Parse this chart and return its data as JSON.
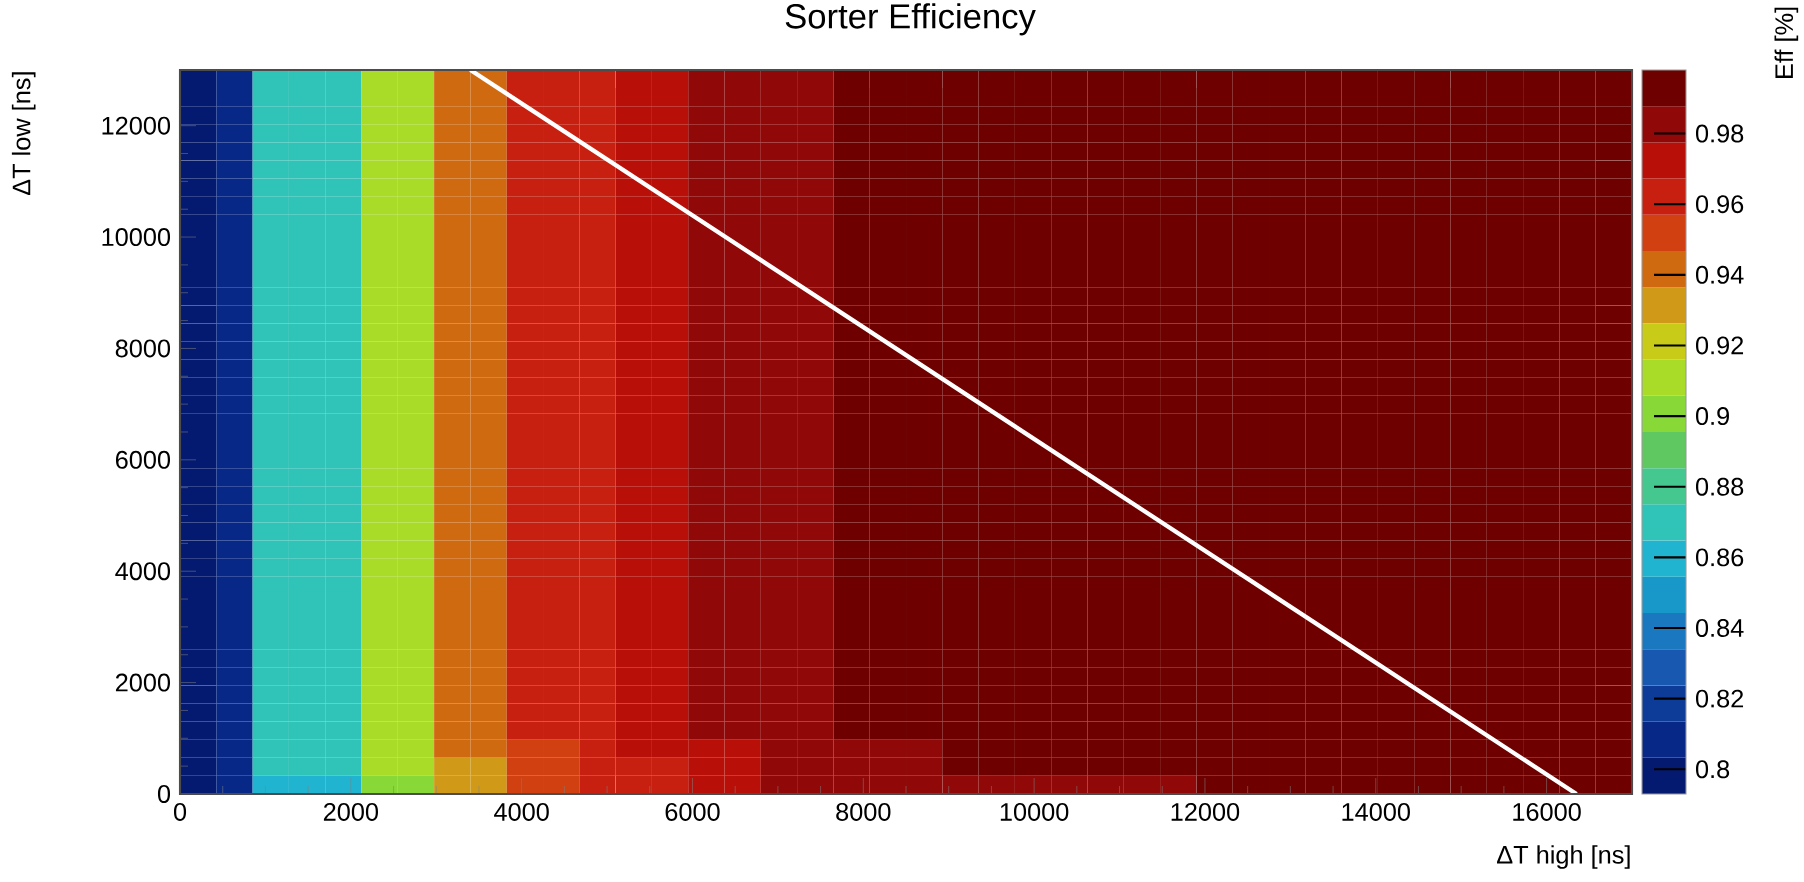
{
  "chart_data": {
    "type": "heatmap",
    "title": "Sorter Efficiency",
    "xlabel": "ΔT high [ns]",
    "ylabel": "ΔT low [ns]",
    "clabel": "Eff [%]",
    "x": [
      212.5,
      637.5,
      1062.5,
      1487.5,
      1912.5,
      2337.5,
      2762.5,
      3187.5,
      3612.5,
      4037.5,
      4462.5,
      4887.5,
      5312.5,
      5737.5,
      6162.5,
      6587.5,
      7012.5,
      7437.5,
      7862.5,
      8287.5,
      8712.5,
      9137.5,
      9562.5,
      9987.5,
      10412.5,
      10837.5,
      11262.5,
      11687.5,
      12112.5,
      12537.5,
      12962.5,
      13387.5,
      13812.5,
      14237.5,
      14662.5,
      15087.5,
      15512.5,
      15937.5,
      16362.5,
      16787.5
    ],
    "y": [
      12837.5,
      12512.5,
      12187.5,
      11862.5,
      11537.5,
      11212.5,
      10887.5,
      10562.5,
      10237.5,
      9912.5,
      9587.5,
      9262.5,
      8937.5,
      8612.5,
      8287.5,
      7962.5,
      7637.5,
      7312.5,
      6987.5,
      6662.5,
      6337.5,
      6012.5,
      5687.5,
      5362.5,
      5037.5,
      4712.5,
      4387.5,
      4062.5,
      3737.5,
      3412.5,
      3087.5,
      2762.5,
      2437.5,
      2112.5,
      1787.5,
      1462.5,
      1137.5,
      812.5,
      487.5,
      162.5
    ],
    "xlim": [
      0,
      17000
    ],
    "ylim": [
      0,
      13000
    ],
    "xticks": [
      0,
      2000,
      4000,
      6000,
      8000,
      10000,
      12000,
      14000,
      16000
    ],
    "yticks": [
      0,
      2000,
      4000,
      6000,
      8000,
      10000,
      12000
    ],
    "clim": [
      0.793,
      0.998
    ],
    "cticks": [
      0.8,
      0.82,
      0.84,
      0.86,
      0.88,
      0.9,
      0.92,
      0.94,
      0.96,
      0.98
    ],
    "cells": [
      [
        0.798,
        0.808,
        0.87,
        0.87,
        0.87,
        0.911,
        0.911,
        0.941,
        0.941,
        0.962,
        0.962,
        0.962,
        0.972,
        0.972,
        0.982,
        0.982,
        0.982,
        0.982,
        0.992,
        0.992,
        0.992,
        0.992,
        0.992,
        0.992,
        0.992,
        0.992,
        0.992,
        0.992,
        0.992,
        0.992,
        0.992,
        0.992,
        0.992,
        0.992,
        0.992,
        0.992,
        0.992,
        0.992,
        0.992,
        0.992
      ],
      [
        0.798,
        0.808,
        0.87,
        0.87,
        0.87,
        0.911,
        0.911,
        0.941,
        0.941,
        0.962,
        0.962,
        0.962,
        0.972,
        0.972,
        0.982,
        0.982,
        0.982,
        0.982,
        0.992,
        0.992,
        0.992,
        0.992,
        0.992,
        0.992,
        0.992,
        0.992,
        0.992,
        0.992,
        0.992,
        0.992,
        0.992,
        0.992,
        0.992,
        0.992,
        0.992,
        0.992,
        0.992,
        0.992,
        0.992,
        0.992
      ],
      [
        0.798,
        0.808,
        0.87,
        0.87,
        0.87,
        0.911,
        0.911,
        0.941,
        0.941,
        0.962,
        0.962,
        0.962,
        0.972,
        0.972,
        0.982,
        0.982,
        0.982,
        0.982,
        0.992,
        0.992,
        0.992,
        0.992,
        0.992,
        0.992,
        0.992,
        0.992,
        0.992,
        0.992,
        0.992,
        0.992,
        0.992,
        0.992,
        0.992,
        0.992,
        0.992,
        0.992,
        0.992,
        0.992,
        0.992,
        0.992
      ],
      [
        0.798,
        0.808,
        0.87,
        0.87,
        0.87,
        0.911,
        0.911,
        0.941,
        0.941,
        0.962,
        0.962,
        0.962,
        0.972,
        0.972,
        0.982,
        0.982,
        0.982,
        0.982,
        0.992,
        0.992,
        0.992,
        0.992,
        0.992,
        0.992,
        0.992,
        0.992,
        0.992,
        0.992,
        0.992,
        0.992,
        0.992,
        0.992,
        0.992,
        0.992,
        0.992,
        0.992,
        0.992,
        0.992,
        0.992,
        0.992
      ],
      [
        0.798,
        0.808,
        0.87,
        0.87,
        0.87,
        0.911,
        0.911,
        0.941,
        0.941,
        0.962,
        0.962,
        0.962,
        0.972,
        0.972,
        0.982,
        0.982,
        0.982,
        0.982,
        0.992,
        0.992,
        0.992,
        0.992,
        0.992,
        0.992,
        0.992,
        0.992,
        0.992,
        0.992,
        0.992,
        0.992,
        0.992,
        0.992,
        0.992,
        0.992,
        0.992,
        0.992,
        0.992,
        0.992,
        0.992,
        0.992
      ],
      [
        0.798,
        0.808,
        0.87,
        0.87,
        0.87,
        0.911,
        0.911,
        0.941,
        0.941,
        0.962,
        0.962,
        0.962,
        0.972,
        0.972,
        0.982,
        0.982,
        0.982,
        0.982,
        0.992,
        0.992,
        0.992,
        0.992,
        0.992,
        0.992,
        0.992,
        0.992,
        0.992,
        0.992,
        0.992,
        0.992,
        0.992,
        0.992,
        0.992,
        0.992,
        0.992,
        0.992,
        0.992,
        0.992,
        0.992,
        0.992
      ],
      [
        0.798,
        0.808,
        0.87,
        0.87,
        0.87,
        0.911,
        0.911,
        0.941,
        0.941,
        0.962,
        0.962,
        0.962,
        0.972,
        0.972,
        0.982,
        0.982,
        0.982,
        0.982,
        0.992,
        0.992,
        0.992,
        0.992,
        0.992,
        0.992,
        0.992,
        0.992,
        0.992,
        0.992,
        0.992,
        0.992,
        0.992,
        0.992,
        0.992,
        0.992,
        0.992,
        0.992,
        0.992,
        0.992,
        0.992,
        0.992
      ],
      [
        0.798,
        0.808,
        0.87,
        0.87,
        0.87,
        0.911,
        0.911,
        0.941,
        0.941,
        0.962,
        0.962,
        0.962,
        0.972,
        0.972,
        0.982,
        0.982,
        0.982,
        0.982,
        0.992,
        0.992,
        0.992,
        0.992,
        0.992,
        0.992,
        0.992,
        0.992,
        0.992,
        0.992,
        0.992,
        0.992,
        0.992,
        0.992,
        0.992,
        0.992,
        0.992,
        0.992,
        0.992,
        0.992,
        0.992,
        0.992
      ],
      [
        0.798,
        0.808,
        0.87,
        0.87,
        0.87,
        0.911,
        0.911,
        0.941,
        0.941,
        0.962,
        0.962,
        0.962,
        0.972,
        0.972,
        0.982,
        0.982,
        0.982,
        0.982,
        0.992,
        0.992,
        0.992,
        0.992,
        0.992,
        0.992,
        0.992,
        0.992,
        0.992,
        0.992,
        0.992,
        0.992,
        0.992,
        0.992,
        0.992,
        0.992,
        0.992,
        0.992,
        0.992,
        0.992,
        0.992,
        0.992
      ],
      [
        0.798,
        0.808,
        0.87,
        0.87,
        0.87,
        0.911,
        0.911,
        0.941,
        0.941,
        0.962,
        0.962,
        0.962,
        0.972,
        0.972,
        0.982,
        0.982,
        0.982,
        0.982,
        0.992,
        0.992,
        0.992,
        0.992,
        0.992,
        0.992,
        0.992,
        0.992,
        0.992,
        0.992,
        0.992,
        0.992,
        0.992,
        0.992,
        0.992,
        0.992,
        0.992,
        0.992,
        0.992,
        0.992,
        0.992,
        0.992
      ],
      [
        0.798,
        0.808,
        0.87,
        0.87,
        0.87,
        0.911,
        0.911,
        0.941,
        0.941,
        0.962,
        0.962,
        0.962,
        0.972,
        0.972,
        0.982,
        0.982,
        0.982,
        0.982,
        0.992,
        0.992,
        0.992,
        0.992,
        0.992,
        0.992,
        0.992,
        0.992,
        0.992,
        0.992,
        0.992,
        0.992,
        0.992,
        0.992,
        0.992,
        0.992,
        0.992,
        0.992,
        0.992,
        0.992,
        0.992,
        0.992
      ],
      [
        0.798,
        0.808,
        0.87,
        0.87,
        0.87,
        0.911,
        0.911,
        0.941,
        0.941,
        0.962,
        0.962,
        0.962,
        0.972,
        0.972,
        0.982,
        0.982,
        0.982,
        0.982,
        0.992,
        0.992,
        0.992,
        0.992,
        0.992,
        0.992,
        0.992,
        0.992,
        0.992,
        0.992,
        0.992,
        0.992,
        0.992,
        0.992,
        0.992,
        0.992,
        0.992,
        0.992,
        0.992,
        0.992,
        0.992,
        0.992
      ],
      [
        0.798,
        0.808,
        0.87,
        0.87,
        0.87,
        0.911,
        0.911,
        0.941,
        0.941,
        0.962,
        0.962,
        0.962,
        0.972,
        0.972,
        0.982,
        0.982,
        0.982,
        0.982,
        0.992,
        0.992,
        0.992,
        0.992,
        0.992,
        0.992,
        0.992,
        0.992,
        0.992,
        0.992,
        0.992,
        0.992,
        0.992,
        0.992,
        0.992,
        0.992,
        0.992,
        0.992,
        0.992,
        0.992,
        0.992,
        0.992
      ],
      [
        0.798,
        0.808,
        0.87,
        0.87,
        0.87,
        0.911,
        0.911,
        0.941,
        0.941,
        0.962,
        0.962,
        0.962,
        0.972,
        0.972,
        0.982,
        0.982,
        0.982,
        0.982,
        0.992,
        0.992,
        0.992,
        0.992,
        0.992,
        0.992,
        0.992,
        0.992,
        0.992,
        0.992,
        0.992,
        0.992,
        0.992,
        0.992,
        0.992,
        0.992,
        0.992,
        0.992,
        0.992,
        0.992,
        0.992,
        0.992
      ],
      [
        0.798,
        0.808,
        0.87,
        0.87,
        0.87,
        0.911,
        0.911,
        0.941,
        0.941,
        0.962,
        0.962,
        0.962,
        0.972,
        0.972,
        0.982,
        0.982,
        0.982,
        0.982,
        0.992,
        0.992,
        0.992,
        0.992,
        0.992,
        0.992,
        0.992,
        0.992,
        0.992,
        0.992,
        0.992,
        0.992,
        0.992,
        0.992,
        0.992,
        0.992,
        0.992,
        0.992,
        0.992,
        0.992,
        0.992,
        0.992
      ],
      [
        0.798,
        0.808,
        0.87,
        0.87,
        0.87,
        0.911,
        0.911,
        0.941,
        0.941,
        0.962,
        0.962,
        0.962,
        0.972,
        0.972,
        0.982,
        0.982,
        0.982,
        0.982,
        0.992,
        0.992,
        0.992,
        0.992,
        0.992,
        0.992,
        0.992,
        0.992,
        0.992,
        0.992,
        0.992,
        0.992,
        0.992,
        0.992,
        0.992,
        0.992,
        0.992,
        0.992,
        0.992,
        0.992,
        0.992,
        0.992
      ],
      [
        0.798,
        0.808,
        0.87,
        0.87,
        0.87,
        0.911,
        0.911,
        0.941,
        0.941,
        0.962,
        0.962,
        0.962,
        0.972,
        0.972,
        0.982,
        0.982,
        0.982,
        0.982,
        0.992,
        0.992,
        0.992,
        0.992,
        0.992,
        0.992,
        0.992,
        0.992,
        0.992,
        0.992,
        0.992,
        0.992,
        0.992,
        0.992,
        0.992,
        0.992,
        0.992,
        0.992,
        0.992,
        0.992,
        0.992,
        0.992
      ],
      [
        0.798,
        0.808,
        0.87,
        0.87,
        0.87,
        0.911,
        0.911,
        0.941,
        0.941,
        0.962,
        0.962,
        0.962,
        0.972,
        0.972,
        0.982,
        0.982,
        0.982,
        0.982,
        0.992,
        0.992,
        0.992,
        0.992,
        0.992,
        0.992,
        0.992,
        0.992,
        0.992,
        0.992,
        0.992,
        0.992,
        0.992,
        0.992,
        0.992,
        0.992,
        0.992,
        0.992,
        0.992,
        0.992,
        0.992,
        0.992
      ],
      [
        0.798,
        0.808,
        0.87,
        0.87,
        0.87,
        0.911,
        0.911,
        0.941,
        0.941,
        0.962,
        0.962,
        0.962,
        0.972,
        0.972,
        0.982,
        0.982,
        0.982,
        0.982,
        0.992,
        0.992,
        0.992,
        0.992,
        0.992,
        0.992,
        0.992,
        0.992,
        0.992,
        0.992,
        0.992,
        0.992,
        0.992,
        0.992,
        0.992,
        0.992,
        0.992,
        0.992,
        0.992,
        0.992,
        0.992,
        0.992
      ],
      [
        0.798,
        0.808,
        0.87,
        0.87,
        0.87,
        0.911,
        0.911,
        0.941,
        0.941,
        0.962,
        0.962,
        0.962,
        0.972,
        0.972,
        0.982,
        0.982,
        0.982,
        0.982,
        0.992,
        0.992,
        0.992,
        0.992,
        0.992,
        0.992,
        0.992,
        0.992,
        0.992,
        0.992,
        0.992,
        0.992,
        0.992,
        0.992,
        0.992,
        0.992,
        0.992,
        0.992,
        0.992,
        0.992,
        0.992,
        0.992
      ],
      [
        0.798,
        0.808,
        0.87,
        0.87,
        0.87,
        0.911,
        0.911,
        0.941,
        0.941,
        0.962,
        0.962,
        0.962,
        0.972,
        0.972,
        0.982,
        0.982,
        0.982,
        0.982,
        0.992,
        0.992,
        0.992,
        0.992,
        0.992,
        0.992,
        0.992,
        0.992,
        0.992,
        0.992,
        0.992,
        0.992,
        0.992,
        0.992,
        0.992,
        0.992,
        0.992,
        0.992,
        0.992,
        0.992,
        0.992,
        0.992
      ],
      [
        0.798,
        0.808,
        0.87,
        0.87,
        0.87,
        0.911,
        0.911,
        0.941,
        0.941,
        0.962,
        0.962,
        0.962,
        0.972,
        0.972,
        0.982,
        0.982,
        0.982,
        0.982,
        0.992,
        0.992,
        0.992,
        0.992,
        0.992,
        0.992,
        0.992,
        0.992,
        0.992,
        0.992,
        0.992,
        0.992,
        0.992,
        0.992,
        0.992,
        0.992,
        0.992,
        0.992,
        0.992,
        0.992,
        0.992,
        0.992
      ],
      [
        0.798,
        0.808,
        0.87,
        0.87,
        0.87,
        0.911,
        0.911,
        0.941,
        0.941,
        0.962,
        0.962,
        0.962,
        0.972,
        0.972,
        0.982,
        0.982,
        0.982,
        0.982,
        0.992,
        0.992,
        0.992,
        0.992,
        0.992,
        0.992,
        0.992,
        0.992,
        0.992,
        0.992,
        0.992,
        0.992,
        0.992,
        0.992,
        0.992,
        0.992,
        0.992,
        0.992,
        0.992,
        0.992,
        0.992,
        0.992
      ],
      [
        0.798,
        0.808,
        0.87,
        0.87,
        0.87,
        0.911,
        0.911,
        0.941,
        0.941,
        0.962,
        0.962,
        0.962,
        0.972,
        0.972,
        0.982,
        0.982,
        0.982,
        0.982,
        0.992,
        0.992,
        0.992,
        0.992,
        0.992,
        0.992,
        0.992,
        0.992,
        0.992,
        0.992,
        0.992,
        0.992,
        0.992,
        0.992,
        0.992,
        0.992,
        0.992,
        0.992,
        0.992,
        0.992,
        0.992,
        0.992
      ],
      [
        0.798,
        0.808,
        0.87,
        0.87,
        0.87,
        0.911,
        0.911,
        0.941,
        0.941,
        0.962,
        0.962,
        0.962,
        0.972,
        0.972,
        0.982,
        0.982,
        0.982,
        0.982,
        0.992,
        0.992,
        0.992,
        0.992,
        0.992,
        0.992,
        0.992,
        0.992,
        0.992,
        0.992,
        0.992,
        0.992,
        0.992,
        0.992,
        0.992,
        0.992,
        0.992,
        0.992,
        0.992,
        0.992,
        0.992,
        0.992
      ],
      [
        0.798,
        0.808,
        0.87,
        0.87,
        0.87,
        0.911,
        0.911,
        0.941,
        0.941,
        0.962,
        0.962,
        0.962,
        0.972,
        0.972,
        0.982,
        0.982,
        0.982,
        0.982,
        0.992,
        0.992,
        0.992,
        0.992,
        0.992,
        0.992,
        0.992,
        0.992,
        0.992,
        0.992,
        0.992,
        0.992,
        0.992,
        0.992,
        0.992,
        0.992,
        0.992,
        0.992,
        0.992,
        0.992,
        0.992,
        0.992
      ],
      [
        0.798,
        0.808,
        0.87,
        0.87,
        0.87,
        0.911,
        0.911,
        0.941,
        0.941,
        0.962,
        0.962,
        0.962,
        0.972,
        0.972,
        0.982,
        0.982,
        0.982,
        0.982,
        0.992,
        0.992,
        0.992,
        0.992,
        0.992,
        0.992,
        0.992,
        0.992,
        0.992,
        0.992,
        0.992,
        0.992,
        0.992,
        0.992,
        0.992,
        0.992,
        0.992,
        0.992,
        0.992,
        0.992,
        0.992,
        0.992
      ],
      [
        0.798,
        0.808,
        0.87,
        0.87,
        0.87,
        0.911,
        0.911,
        0.941,
        0.941,
        0.962,
        0.962,
        0.962,
        0.972,
        0.972,
        0.982,
        0.982,
        0.982,
        0.982,
        0.992,
        0.992,
        0.992,
        0.992,
        0.992,
        0.992,
        0.992,
        0.992,
        0.992,
        0.992,
        0.992,
        0.992,
        0.992,
        0.992,
        0.992,
        0.992,
        0.992,
        0.992,
        0.992,
        0.992,
        0.992,
        0.992
      ],
      [
        0.798,
        0.808,
        0.87,
        0.87,
        0.87,
        0.911,
        0.911,
        0.941,
        0.941,
        0.962,
        0.962,
        0.962,
        0.972,
        0.972,
        0.982,
        0.982,
        0.982,
        0.982,
        0.992,
        0.992,
        0.992,
        0.992,
        0.992,
        0.992,
        0.992,
        0.992,
        0.992,
        0.992,
        0.992,
        0.992,
        0.992,
        0.992,
        0.992,
        0.992,
        0.992,
        0.992,
        0.992,
        0.992,
        0.992,
        0.992
      ],
      [
        0.798,
        0.808,
        0.87,
        0.87,
        0.87,
        0.911,
        0.911,
        0.941,
        0.941,
        0.962,
        0.962,
        0.962,
        0.972,
        0.972,
        0.982,
        0.982,
        0.982,
        0.982,
        0.992,
        0.992,
        0.992,
        0.992,
        0.992,
        0.992,
        0.992,
        0.992,
        0.992,
        0.992,
        0.992,
        0.992,
        0.992,
        0.992,
        0.992,
        0.992,
        0.992,
        0.992,
        0.992,
        0.992,
        0.992,
        0.992
      ],
      [
        0.798,
        0.808,
        0.87,
        0.87,
        0.87,
        0.911,
        0.911,
        0.941,
        0.941,
        0.962,
        0.962,
        0.962,
        0.972,
        0.972,
        0.982,
        0.982,
        0.982,
        0.982,
        0.992,
        0.992,
        0.992,
        0.992,
        0.992,
        0.992,
        0.992,
        0.992,
        0.992,
        0.992,
        0.992,
        0.992,
        0.992,
        0.992,
        0.992,
        0.992,
        0.992,
        0.992,
        0.992,
        0.992,
        0.992,
        0.992
      ],
      [
        0.798,
        0.808,
        0.87,
        0.87,
        0.87,
        0.911,
        0.911,
        0.941,
        0.941,
        0.962,
        0.962,
        0.962,
        0.972,
        0.972,
        0.982,
        0.982,
        0.982,
        0.982,
        0.992,
        0.992,
        0.992,
        0.992,
        0.992,
        0.992,
        0.992,
        0.992,
        0.992,
        0.992,
        0.992,
        0.992,
        0.992,
        0.992,
        0.992,
        0.992,
        0.992,
        0.992,
        0.992,
        0.992,
        0.992,
        0.992
      ],
      [
        0.798,
        0.808,
        0.87,
        0.87,
        0.87,
        0.911,
        0.911,
        0.941,
        0.941,
        0.962,
        0.962,
        0.962,
        0.972,
        0.972,
        0.982,
        0.982,
        0.982,
        0.982,
        0.992,
        0.992,
        0.992,
        0.992,
        0.992,
        0.992,
        0.992,
        0.992,
        0.992,
        0.992,
        0.992,
        0.992,
        0.992,
        0.992,
        0.992,
        0.992,
        0.992,
        0.992,
        0.992,
        0.992,
        0.992,
        0.992
      ],
      [
        0.798,
        0.808,
        0.87,
        0.87,
        0.87,
        0.911,
        0.911,
        0.941,
        0.941,
        0.962,
        0.962,
        0.962,
        0.972,
        0.972,
        0.982,
        0.982,
        0.982,
        0.982,
        0.992,
        0.992,
        0.992,
        0.992,
        0.992,
        0.992,
        0.992,
        0.992,
        0.992,
        0.992,
        0.992,
        0.992,
        0.992,
        0.992,
        0.992,
        0.992,
        0.992,
        0.992,
        0.992,
        0.992,
        0.992,
        0.992
      ],
      [
        0.798,
        0.808,
        0.87,
        0.87,
        0.87,
        0.911,
        0.911,
        0.941,
        0.941,
        0.962,
        0.962,
        0.962,
        0.972,
        0.972,
        0.982,
        0.982,
        0.982,
        0.982,
        0.992,
        0.992,
        0.992,
        0.992,
        0.992,
        0.992,
        0.992,
        0.992,
        0.992,
        0.992,
        0.992,
        0.992,
        0.992,
        0.992,
        0.992,
        0.992,
        0.992,
        0.992,
        0.992,
        0.992,
        0.992,
        0.992
      ],
      [
        0.798,
        0.808,
        0.87,
        0.87,
        0.87,
        0.911,
        0.911,
        0.941,
        0.941,
        0.962,
        0.962,
        0.962,
        0.972,
        0.972,
        0.982,
        0.982,
        0.982,
        0.982,
        0.992,
        0.992,
        0.992,
        0.992,
        0.992,
        0.992,
        0.992,
        0.992,
        0.992,
        0.992,
        0.992,
        0.992,
        0.992,
        0.992,
        0.992,
        0.992,
        0.992,
        0.992,
        0.992,
        0.992,
        0.992,
        0.992
      ],
      [
        0.798,
        0.808,
        0.87,
        0.87,
        0.87,
        0.911,
        0.911,
        0.941,
        0.941,
        0.962,
        0.962,
        0.962,
        0.972,
        0.972,
        0.982,
        0.982,
        0.982,
        0.982,
        0.992,
        0.992,
        0.992,
        0.992,
        0.992,
        0.992,
        0.992,
        0.992,
        0.992,
        0.992,
        0.992,
        0.992,
        0.992,
        0.992,
        0.992,
        0.992,
        0.992,
        0.992,
        0.992,
        0.992,
        0.992,
        0.992
      ],
      [
        0.798,
        0.808,
        0.87,
        0.87,
        0.87,
        0.911,
        0.911,
        0.941,
        0.941,
        0.951,
        0.951,
        0.962,
        0.972,
        0.972,
        0.972,
        0.972,
        0.982,
        0.982,
        0.982,
        0.982,
        0.982,
        0.992,
        0.992,
        0.992,
        0.992,
        0.992,
        0.992,
        0.992,
        0.992,
        0.992,
        0.992,
        0.992,
        0.992,
        0.992,
        0.992,
        0.992,
        0.992,
        0.992,
        0.992,
        0.992
      ],
      [
        0.798,
        0.808,
        0.87,
        0.87,
        0.87,
        0.911,
        0.911,
        0.931,
        0.931,
        0.951,
        0.951,
        0.962,
        0.962,
        0.962,
        0.972,
        0.972,
        0.982,
        0.982,
        0.982,
        0.982,
        0.982,
        0.992,
        0.992,
        0.992,
        0.992,
        0.992,
        0.992,
        0.992,
        0.992,
        0.992,
        0.992,
        0.992,
        0.992,
        0.992,
        0.992,
        0.992,
        0.992,
        0.992,
        0.992,
        0.992
      ],
      [
        0.798,
        0.808,
        0.86,
        0.86,
        0.86,
        0.9,
        0.9,
        0.931,
        0.931,
        0.951,
        0.951,
        0.962,
        0.962,
        0.962,
        0.972,
        0.972,
        0.982,
        0.982,
        0.982,
        0.982,
        0.982,
        0.982,
        0.982,
        0.982,
        0.982,
        0.982,
        0.982,
        0.982,
        0.992,
        0.992,
        0.992,
        0.992,
        0.992,
        0.992,
        0.992,
        0.992,
        0.992,
        0.992,
        0.992,
        0.992
      ]
    ],
    "series": [
      {
        "type": "line",
        "color": "#ffffff",
        "x": [
          3400,
          16350
        ],
        "values": [
          13000,
          0
        ]
      }
    ]
  }
}
